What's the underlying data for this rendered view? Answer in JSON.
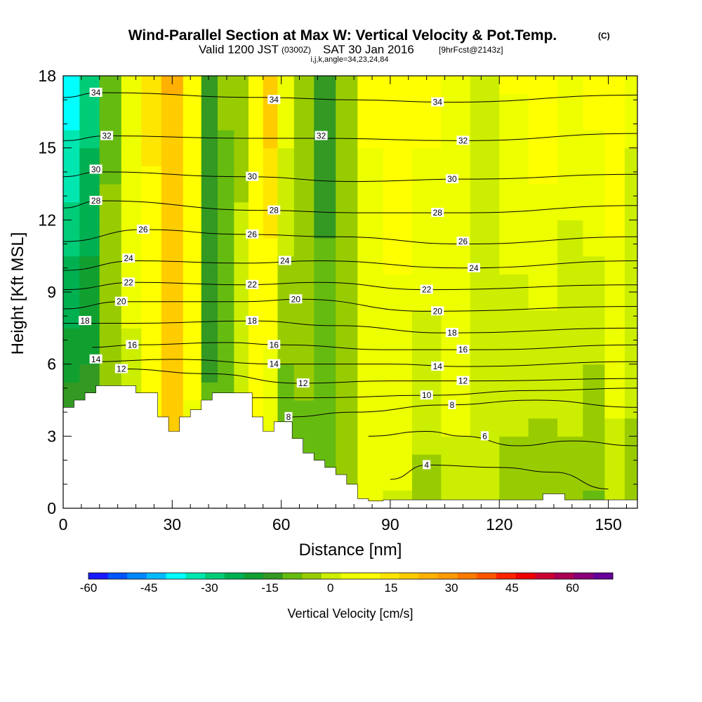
{
  "title": {
    "main": "Wind-Parallel Section at Max W: Vertical Velocity & Pot.Temp.",
    "copyright": "(C)",
    "valid_prefix": "Valid 1200 JST",
    "valid_utc": "(0300Z)",
    "valid_date": "SAT 30 Jan 2016",
    "forecast": "[9hrFcst@2143z]",
    "indices": "i,j,k,angle=34,23,24,84"
  },
  "chart_data": {
    "type": "heatmap",
    "xlabel": "Distance [nm]",
    "ylabel": "Height [Kft MSL]",
    "xlim": [
      0,
      158
    ],
    "ylim": [
      0,
      18
    ],
    "x_ticks": [
      0,
      30,
      60,
      90,
      120,
      150
    ],
    "y_ticks": [
      0,
      3,
      6,
      9,
      12,
      15,
      18
    ],
    "colorbar": {
      "title": "Vertical Velocity [cm/s]",
      "range": [
        -60,
        70
      ],
      "tick_labels": [
        "-60",
        "-45",
        "-30",
        "-15",
        "0",
        "15",
        "30",
        "45",
        "60"
      ],
      "tick_values": [
        -60,
        -45,
        -30,
        -15,
        0,
        15,
        30,
        45,
        60
      ],
      "colors": [
        "#1a1aff",
        "#0055ff",
        "#0088ff",
        "#00bbff",
        "#00ffff",
        "#00e6b0",
        "#00cc77",
        "#00b050",
        "#11a030",
        "#339922",
        "#66bb11",
        "#99cc00",
        "#ccee00",
        "#eeff00",
        "#ffff00",
        "#ffe600",
        "#ffcc00",
        "#ffb000",
        "#ff9900",
        "#ff7a00",
        "#ff5500",
        "#ff2200",
        "#ee0000",
        "#cc0033",
        "#aa0055",
        "#880077",
        "#660099"
      ]
    },
    "series": [
      {
        "name": "Vertical Velocity [cm/s]",
        "type": "filled_contour",
        "columns": [
          {
            "x": 2,
            "top": -40,
            "bottom": -8
          },
          {
            "x": 7,
            "top": -30,
            "bottom": -10
          },
          {
            "x": 13,
            "top": -8,
            "bottom": -4
          },
          {
            "x": 19,
            "top": 6,
            "bottom": 0
          },
          {
            "x": 24,
            "top": 14,
            "bottom": 6
          },
          {
            "x": 30,
            "top": 22,
            "bottom": 18
          },
          {
            "x": 36,
            "top": 12,
            "bottom": 6
          },
          {
            "x": 40,
            "top": -16,
            "bottom": -10
          },
          {
            "x": 45,
            "top": -6,
            "bottom": -14
          },
          {
            "x": 49,
            "top": -4,
            "bottom": 2
          },
          {
            "x": 53,
            "top": 8,
            "bottom": 10
          },
          {
            "x": 57,
            "top": 20,
            "bottom": 0
          },
          {
            "x": 61,
            "top": 6,
            "bottom": -14
          },
          {
            "x": 66,
            "top": -4,
            "bottom": -8
          },
          {
            "x": 72,
            "top": -14,
            "bottom": -8
          },
          {
            "x": 78,
            "top": -6,
            "bottom": -2
          },
          {
            "x": 84,
            "top": 8,
            "bottom": 4
          },
          {
            "x": 92,
            "top": 12,
            "bottom": 2
          },
          {
            "x": 100,
            "top": 10,
            "bottom": -4
          },
          {
            "x": 108,
            "top": 6,
            "bottom": 2
          },
          {
            "x": 116,
            "top": 2,
            "bottom": -2
          },
          {
            "x": 124,
            "top": 8,
            "bottom": -4
          },
          {
            "x": 132,
            "top": 12,
            "bottom": -6
          },
          {
            "x": 140,
            "top": 6,
            "bottom": -4
          },
          {
            "x": 146,
            "top": 10,
            "bottom": -8
          },
          {
            "x": 152,
            "top": 12,
            "bottom": 0
          },
          {
            "x": 157,
            "top": 4,
            "bottom": -4
          }
        ]
      },
      {
        "name": "Potential Temperature",
        "type": "line_contours",
        "levels": [
          4,
          6,
          8,
          10,
          12,
          14,
          16,
          18,
          20,
          22,
          24,
          26,
          28,
          30,
          32,
          34
        ],
        "heights": [
          {
            "level": 4,
            "values": [
              [
                90,
                1.2
              ],
              [
                100,
                1.8
              ],
              [
                120,
                1.7
              ],
              [
                135,
                1.5
              ],
              [
                150,
                0.8
              ]
            ]
          },
          {
            "level": 6,
            "values": [
              [
                84,
                3.0
              ],
              [
                100,
                3.2
              ],
              [
                110,
                3.0
              ],
              [
                125,
                2.6
              ],
              [
                140,
                2.8
              ],
              [
                158,
                2.6
              ]
            ]
          },
          {
            "level": 8,
            "values": [
              [
                62,
                3.8
              ],
              [
                80,
                4.0
              ],
              [
                105,
                4.3
              ],
              [
                130,
                4.5
              ],
              [
                158,
                4.2
              ]
            ]
          },
          {
            "level": 10,
            "values": [
              [
                52,
                4.6
              ],
              [
                70,
                4.6
              ],
              [
                100,
                4.7
              ],
              [
                130,
                4.9
              ],
              [
                158,
                5.0
              ]
            ]
          },
          {
            "level": 12,
            "values": [
              [
                16,
                5.8
              ],
              [
                40,
                5.6
              ],
              [
                65,
                5.2
              ],
              [
                90,
                5.3
              ],
              [
                115,
                5.3
              ],
              [
                158,
                5.4
              ]
            ]
          },
          {
            "level": 14,
            "values": [
              [
                8,
                6.1
              ],
              [
                30,
                6.2
              ],
              [
                60,
                6.0
              ],
              [
                90,
                6.0
              ],
              [
                110,
                5.9
              ],
              [
                158,
                6.1
              ]
            ]
          },
          {
            "level": 16,
            "values": [
              [
                8,
                6.7
              ],
              [
                20,
                6.8
              ],
              [
                45,
                6.9
              ],
              [
                60,
                6.8
              ],
              [
                90,
                6.6
              ],
              [
                115,
                6.6
              ],
              [
                158,
                6.8
              ]
            ]
          },
          {
            "level": 18,
            "values": [
              [
                0,
                7.7
              ],
              [
                20,
                7.7
              ],
              [
                52,
                7.8
              ],
              [
                75,
                7.6
              ],
              [
                105,
                7.3
              ],
              [
                158,
                7.5
              ]
            ]
          },
          {
            "level": 20,
            "values": [
              [
                0,
                8.3
              ],
              [
                16,
                8.6
              ],
              [
                50,
                8.6
              ],
              [
                65,
                8.7
              ],
              [
                100,
                8.2
              ],
              [
                158,
                8.4
              ]
            ]
          },
          {
            "level": 22,
            "values": [
              [
                0,
                9.1
              ],
              [
                20,
                9.4
              ],
              [
                50,
                9.3
              ],
              [
                70,
                9.4
              ],
              [
                100,
                9.1
              ],
              [
                158,
                9.3
              ]
            ]
          },
          {
            "level": 24,
            "values": [
              [
                0,
                9.9
              ],
              [
                20,
                10.3
              ],
              [
                50,
                10.2
              ],
              [
                70,
                10.3
              ],
              [
                110,
                10.0
              ],
              [
                158,
                10.3
              ]
            ]
          },
          {
            "level": 26,
            "values": [
              [
                0,
                11.1
              ],
              [
                22,
                11.6
              ],
              [
                50,
                11.4
              ],
              [
                75,
                11.3
              ],
              [
                110,
                11.0
              ],
              [
                158,
                11.3
              ]
            ]
          },
          {
            "level": 28,
            "values": [
              [
                0,
                12.5
              ],
              [
                10,
                12.8
              ],
              [
                55,
                12.4
              ],
              [
                80,
                12.3
              ],
              [
                110,
                12.3
              ],
              [
                158,
                12.6
              ]
            ]
          },
          {
            "level": 30,
            "values": [
              [
                0,
                13.8
              ],
              [
                10,
                14.0
              ],
              [
                50,
                13.8
              ],
              [
                80,
                13.6
              ],
              [
                110,
                13.7
              ],
              [
                158,
                13.9
              ]
            ]
          },
          {
            "level": 32,
            "values": [
              [
                0,
                15.3
              ],
              [
                12,
                15.5
              ],
              [
                50,
                15.4
              ],
              [
                70,
                15.4
              ],
              [
                110,
                15.3
              ],
              [
                158,
                15.6
              ]
            ]
          },
          {
            "level": 34,
            "values": [
              [
                0,
                17.1
              ],
              [
                10,
                17.3
              ],
              [
                55,
                17.1
              ],
              [
                80,
                17.0
              ],
              [
                105,
                16.9
              ],
              [
                158,
                17.2
              ]
            ]
          }
        ]
      }
    ],
    "terrain": {
      "name": "Terrain",
      "profile": [
        [
          0,
          4.2
        ],
        [
          3,
          4.2
        ],
        [
          3,
          4.5
        ],
        [
          6,
          4.5
        ],
        [
          6,
          4.8
        ],
        [
          9,
          4.8
        ],
        [
          9,
          5.1
        ],
        [
          20,
          5.1
        ],
        [
          20,
          4.8
        ],
        [
          26,
          4.8
        ],
        [
          26,
          3.8
        ],
        [
          29,
          3.8
        ],
        [
          29,
          3.2
        ],
        [
          32,
          3.2
        ],
        [
          32,
          3.8
        ],
        [
          35,
          3.8
        ],
        [
          35,
          4.1
        ],
        [
          38,
          4.1
        ],
        [
          38,
          4.5
        ],
        [
          41,
          4.5
        ],
        [
          41,
          4.8
        ],
        [
          52,
          4.8
        ],
        [
          52,
          3.8
        ],
        [
          55,
          3.8
        ],
        [
          55,
          3.2
        ],
        [
          58,
          3.2
        ],
        [
          58,
          3.6
        ],
        [
          63,
          3.6
        ],
        [
          63,
          2.9
        ],
        [
          66,
          2.9
        ],
        [
          66,
          2.3
        ],
        [
          69,
          2.3
        ],
        [
          69,
          2.0
        ],
        [
          72,
          2.0
        ],
        [
          72,
          1.7
        ],
        [
          75,
          1.7
        ],
        [
          75,
          1.4
        ],
        [
          78,
          1.4
        ],
        [
          78,
          1.0
        ],
        [
          81,
          1.0
        ],
        [
          81,
          0.4
        ],
        [
          84,
          0.4
        ],
        [
          84,
          0.3
        ],
        [
          88,
          0.3
        ],
        [
          88,
          0.35
        ],
        [
          132,
          0.35
        ],
        [
          132,
          0.6
        ],
        [
          138,
          0.6
        ],
        [
          138,
          0.35
        ],
        [
          158,
          0.35
        ],
        [
          158,
          0
        ],
        [
          0,
          0
        ]
      ]
    },
    "theta_labels": [
      {
        "text": "34",
        "x": 9,
        "y": 17.3
      },
      {
        "text": "32",
        "x": 12,
        "y": 15.5
      },
      {
        "text": "30",
        "x": 9,
        "y": 14.1
      },
      {
        "text": "28",
        "x": 9,
        "y": 12.8
      },
      {
        "text": "26",
        "x": 22,
        "y": 11.6
      },
      {
        "text": "24",
        "x": 18,
        "y": 10.4
      },
      {
        "text": "22",
        "x": 18,
        "y": 9.4
      },
      {
        "text": "20",
        "x": 16,
        "y": 8.6
      },
      {
        "text": "18",
        "x": 6,
        "y": 7.8
      },
      {
        "text": "16",
        "x": 19,
        "y": 6.8
      },
      {
        "text": "14",
        "x": 9,
        "y": 6.2
      },
      {
        "text": "12",
        "x": 16,
        "y": 5.8
      },
      {
        "text": "34",
        "x": 58,
        "y": 17.0
      },
      {
        "text": "32",
        "x": 71,
        "y": 15.5
      },
      {
        "text": "30",
        "x": 52,
        "y": 13.8
      },
      {
        "text": "28",
        "x": 58,
        "y": 12.4
      },
      {
        "text": "26",
        "x": 52,
        "y": 11.4
      },
      {
        "text": "24",
        "x": 61,
        "y": 10.3
      },
      {
        "text": "22",
        "x": 52,
        "y": 9.3
      },
      {
        "text": "20",
        "x": 64,
        "y": 8.7
      },
      {
        "text": "18",
        "x": 52,
        "y": 7.8
      },
      {
        "text": "16",
        "x": 58,
        "y": 6.8
      },
      {
        "text": "14",
        "x": 58,
        "y": 6.0
      },
      {
        "text": "12",
        "x": 66,
        "y": 5.2
      },
      {
        "text": "8",
        "x": 62,
        "y": 3.8
      },
      {
        "text": "34",
        "x": 103,
        "y": 16.9
      },
      {
        "text": "32",
        "x": 110,
        "y": 15.3
      },
      {
        "text": "30",
        "x": 107,
        "y": 13.7
      },
      {
        "text": "28",
        "x": 103,
        "y": 12.3
      },
      {
        "text": "26",
        "x": 110,
        "y": 11.1
      },
      {
        "text": "24",
        "x": 113,
        "y": 10.0
      },
      {
        "text": "22",
        "x": 100,
        "y": 9.1
      },
      {
        "text": "20",
        "x": 103,
        "y": 8.2
      },
      {
        "text": "18",
        "x": 107,
        "y": 7.3
      },
      {
        "text": "16",
        "x": 110,
        "y": 6.6
      },
      {
        "text": "14",
        "x": 103,
        "y": 5.9
      },
      {
        "text": "12",
        "x": 110,
        "y": 5.3
      },
      {
        "text": "10",
        "x": 100,
        "y": 4.7
      },
      {
        "text": "8",
        "x": 107,
        "y": 4.3
      },
      {
        "text": "6",
        "x": 116,
        "y": 3.0
      },
      {
        "text": "4",
        "x": 100,
        "y": 1.8
      }
    ]
  },
  "colors": {
    "background": "#ffffff",
    "axis": "#000000",
    "contour": "#000000",
    "terrain": "#ffffff"
  }
}
